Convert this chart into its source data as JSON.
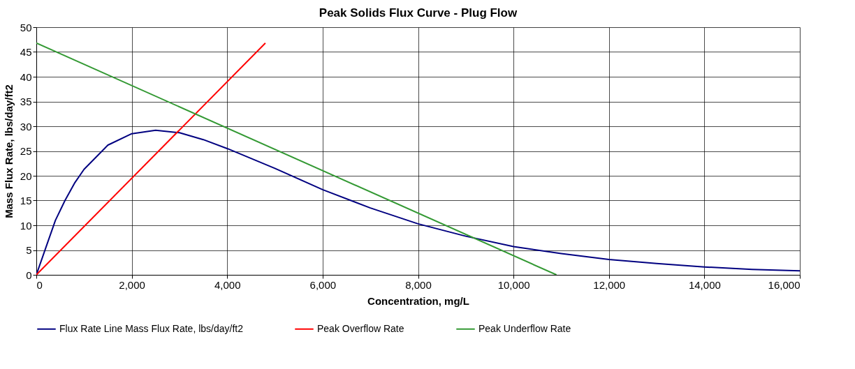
{
  "chart_data": {
    "type": "line",
    "title": "Peak Solids Flux Curve - Plug Flow",
    "xlabel": "Concentration, mg/L",
    "ylabel": "Mass Flux Rate, lbs/day/ft2",
    "xlim": [
      0,
      16000
    ],
    "xticks": [
      {
        "value": 0,
        "label": "0"
      },
      {
        "value": 2000,
        "label": "2,000"
      },
      {
        "value": 4000,
        "label": "4,000"
      },
      {
        "value": 6000,
        "label": "6,000"
      },
      {
        "value": 8000,
        "label": "8,000"
      },
      {
        "value": 10000,
        "label": "10,000"
      },
      {
        "value": 12000,
        "label": "12,000"
      },
      {
        "value": 14000,
        "label": "14,000"
      },
      {
        "value": 16000,
        "label": "16,000"
      }
    ],
    "ylim": [
      0,
      50
    ],
    "yticks": [
      0,
      5,
      10,
      15,
      20,
      25,
      30,
      35,
      40,
      45,
      50
    ],
    "grid": true,
    "legend": "bottom",
    "marker": "none",
    "line_style": "solid",
    "series": [
      {
        "name": "Flux Rate Line Mass Flux Rate, lbs/day/ft2",
        "color": "#000080",
        "x": [
          0,
          200,
          400,
          600,
          800,
          1000,
          1500,
          2000,
          2500,
          3000,
          3500,
          4000,
          5000,
          6000,
          7000,
          8000,
          9000,
          10000,
          11000,
          12000,
          13000,
          14000,
          15000,
          16000
        ],
        "values": [
          0,
          5.5,
          11,
          15,
          18.5,
          21.3,
          26.2,
          28.5,
          29.2,
          28.7,
          27.3,
          25.5,
          21.5,
          17.2,
          13.5,
          10.3,
          7.8,
          5.7,
          4.3,
          3.1,
          2.3,
          1.6,
          1.1,
          0.8
        ]
      },
      {
        "name": "Peak Overflow Rate",
        "color": "#ff0000",
        "x": [
          0,
          4800
        ],
        "values": [
          0,
          46.8
        ]
      },
      {
        "name": "Peak Underflow Rate",
        "color": "#339933",
        "x": [
          0,
          10900
        ],
        "values": [
          46.8,
          0
        ]
      }
    ]
  }
}
